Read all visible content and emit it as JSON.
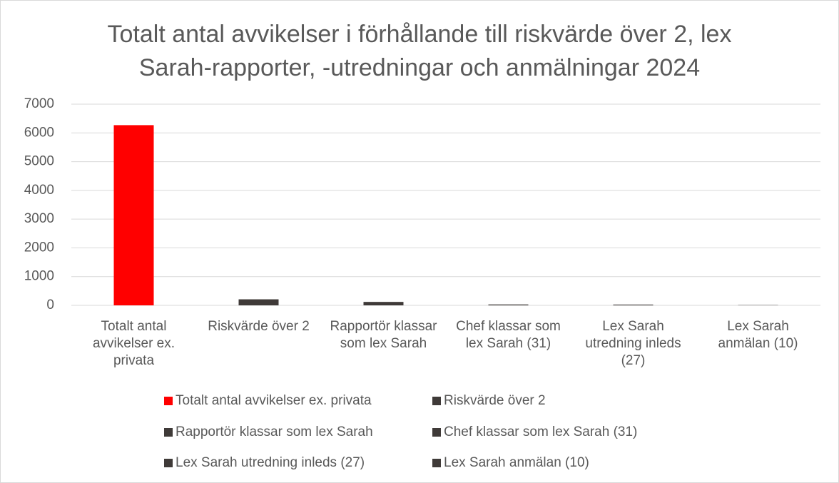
{
  "chart_data": {
    "type": "bar",
    "title": "Totalt antal avvikelser i förhållande till riskvärde över 2, lex Sarah-rapporter, -utredningar och anmälningar 2024",
    "categories": [
      "Totalt antal avvikelser ex. privata",
      "Riskvärde över 2",
      "Rapportör klassar som lex Sarah",
      "Chef klassar som lex Sarah (31)",
      "Lex Sarah utredning inleds (27)",
      "Lex Sarah anmälan (10)"
    ],
    "values": [
      6270,
      210,
      120,
      31,
      27,
      10
    ],
    "colors": [
      "#ff0000",
      "#3f3a38",
      "#3f3a38",
      "#3f3a38",
      "#3f3a38",
      "#3f3a38"
    ],
    "ylim": [
      0,
      7000
    ],
    "yticks": [
      0,
      1000,
      2000,
      3000,
      4000,
      5000,
      6000,
      7000
    ],
    "grid": true,
    "legend": "bottom"
  }
}
